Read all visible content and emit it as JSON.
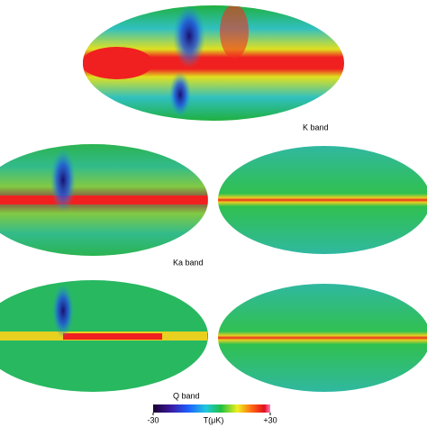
{
  "panels": [
    {
      "label": "K band"
    },
    {
      "label": "Ka band"
    },
    {
      "label": "Q band"
    }
  ],
  "colorbar": {
    "label": "T(μK)",
    "lim": [
      -30,
      30
    ],
    "ticks": [
      {
        "value": -30,
        "label": "-30"
      },
      {
        "value": 30,
        "label": "+30"
      }
    ]
  }
}
